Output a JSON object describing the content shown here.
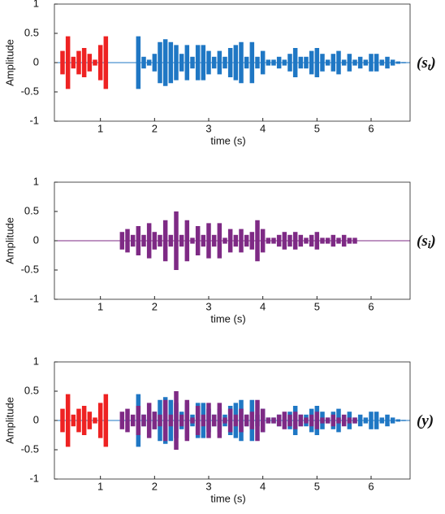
{
  "chart_data": [
    {
      "type": "waveform",
      "ylabel": "Amplitude",
      "xlabel": "time (s)",
      "annotation": {
        "base": "(s",
        "sub": "t",
        "close": ")"
      },
      "xlim": [
        0.15,
        6.72
      ],
      "ylim": [
        -1,
        1
      ],
      "xticks": [
        1,
        2,
        3,
        4,
        5,
        6
      ],
      "yticks": [
        -1,
        -0.5,
        0,
        0.5,
        1
      ],
      "series": [
        {
          "color": "#1f77c4",
          "x": [
            1.7,
            1.8,
            1.9,
            2.0,
            2.1,
            2.2,
            2.3,
            2.4,
            2.5,
            2.6,
            2.7,
            2.8,
            2.9,
            3.0,
            3.1,
            3.2,
            3.3,
            3.4,
            3.5,
            3.6,
            3.7,
            3.8,
            3.9,
            4.0,
            4.1,
            4.2,
            4.3,
            4.4,
            4.5,
            4.6,
            4.7,
            4.8,
            4.9,
            5.0,
            5.1,
            5.2,
            5.3,
            5.4,
            5.5,
            5.6,
            5.7,
            5.8,
            5.9,
            6.0,
            6.1,
            6.2,
            6.3,
            6.4,
            6.5,
            6.6
          ],
          "values": [
            0.45,
            0.1,
            0.05,
            0.15,
            0.35,
            0.4,
            0.35,
            0.3,
            0.15,
            0.3,
            0.1,
            0.3,
            0.3,
            0.2,
            0.1,
            0.2,
            0.1,
            0.25,
            0.3,
            0.35,
            0.1,
            0.35,
            0.1,
            0.2,
            0.05,
            0.05,
            0.1,
            0.05,
            0.15,
            0.25,
            0.1,
            0.1,
            0.2,
            0.25,
            0.15,
            0.05,
            0.15,
            0.2,
            0.05,
            0.15,
            0.05,
            0.1,
            0.05,
            0.15,
            0.15,
            0.05,
            0.1,
            0.05,
            0.02,
            0.01
          ]
        },
        {
          "color": "#ee2222",
          "x": [
            0.3,
            0.4,
            0.5,
            0.6,
            0.7,
            0.8,
            0.9,
            1.0,
            1.1
          ],
          "values": [
            0.2,
            0.45,
            0.1,
            0.2,
            0.25,
            0.15,
            0.05,
            0.3,
            0.45
          ]
        }
      ]
    },
    {
      "type": "waveform",
      "ylabel": "Amplitude",
      "xlabel": "time (s)",
      "annotation": {
        "base": "(s",
        "sub": "i",
        "close": ")"
      },
      "xlim": [
        0.15,
        6.72
      ],
      "ylim": [
        -1,
        1
      ],
      "xticks": [
        1,
        2,
        3,
        4,
        5,
        6
      ],
      "yticks": [
        -1,
        -0.5,
        0,
        0.5,
        1
      ],
      "series": [
        {
          "color": "#7e2a85",
          "x": [
            1.4,
            1.5,
            1.6,
            1.7,
            1.8,
            1.9,
            2.0,
            2.1,
            2.2,
            2.3,
            2.4,
            2.5,
            2.6,
            2.7,
            2.8,
            2.9,
            3.0,
            3.1,
            3.2,
            3.3,
            3.4,
            3.5,
            3.6,
            3.7,
            3.8,
            3.9,
            4.0,
            4.1,
            4.2,
            4.3,
            4.4,
            4.5,
            4.6,
            4.7,
            4.8,
            4.9,
            5.0,
            5.1,
            5.2,
            5.3,
            5.4,
            5.5,
            5.6,
            5.7
          ],
          "values": [
            0.15,
            0.2,
            0.1,
            0.25,
            0.1,
            0.3,
            0.15,
            0.1,
            0.35,
            0.1,
            0.5,
            0.1,
            0.35,
            0.05,
            0.25,
            0.1,
            0.3,
            0.1,
            0.3,
            0.05,
            0.2,
            0.1,
            0.2,
            0.1,
            0.15,
            0.35,
            0.2,
            0.05,
            0.05,
            0.1,
            0.15,
            0.1,
            0.15,
            0.1,
            0.05,
            0.1,
            0.15,
            0.05,
            0.05,
            0.1,
            0.05,
            0.1,
            0.05,
            0.05
          ]
        }
      ]
    },
    {
      "type": "waveform",
      "ylabel": "Amplitude",
      "xlabel": "time (s)",
      "annotation": {
        "base": "(y",
        "close": ")"
      },
      "xlim": [
        0.15,
        6.72
      ],
      "ylim": [
        -1,
        1
      ],
      "xticks": [
        1,
        2,
        3,
        4,
        5,
        6
      ],
      "yticks": [
        -1,
        -0.5,
        0,
        0.5,
        1
      ],
      "series": [
        {
          "color": "#1f77c4",
          "x": [
            1.7,
            1.8,
            1.9,
            2.0,
            2.1,
            2.2,
            2.3,
            2.4,
            2.5,
            2.6,
            2.7,
            2.8,
            2.9,
            3.0,
            3.1,
            3.2,
            3.3,
            3.4,
            3.5,
            3.6,
            3.7,
            3.8,
            3.9,
            4.0,
            4.1,
            4.2,
            4.3,
            4.4,
            4.5,
            4.6,
            4.7,
            4.8,
            4.9,
            5.0,
            5.1,
            5.2,
            5.3,
            5.4,
            5.5,
            5.6,
            5.7,
            5.8,
            5.9,
            6.0,
            6.1,
            6.2,
            6.3,
            6.4,
            6.5,
            6.6
          ],
          "values": [
            0.45,
            0.1,
            0.05,
            0.15,
            0.35,
            0.4,
            0.35,
            0.3,
            0.15,
            0.3,
            0.1,
            0.3,
            0.3,
            0.2,
            0.1,
            0.2,
            0.1,
            0.25,
            0.3,
            0.35,
            0.1,
            0.35,
            0.1,
            0.2,
            0.05,
            0.05,
            0.1,
            0.05,
            0.15,
            0.25,
            0.1,
            0.1,
            0.2,
            0.25,
            0.15,
            0.05,
            0.15,
            0.2,
            0.05,
            0.15,
            0.05,
            0.1,
            0.05,
            0.15,
            0.15,
            0.05,
            0.1,
            0.05,
            0.02,
            0.01
          ]
        },
        {
          "color": "#7e2a85",
          "x": [
            1.4,
            1.5,
            1.6,
            1.7,
            1.8,
            1.9,
            2.0,
            2.1,
            2.2,
            2.3,
            2.4,
            2.5,
            2.6,
            2.7,
            2.8,
            2.9,
            3.0,
            3.1,
            3.2,
            3.3,
            3.4,
            3.5,
            3.6,
            3.7,
            3.8,
            3.9,
            4.0,
            4.1,
            4.2,
            4.3,
            4.4,
            4.5,
            4.6,
            4.7,
            4.8,
            4.9,
            5.0,
            5.1,
            5.2,
            5.3,
            5.4,
            5.5,
            5.6,
            5.7
          ],
          "values": [
            0.15,
            0.2,
            0.1,
            0.25,
            0.1,
            0.3,
            0.15,
            0.1,
            0.35,
            0.1,
            0.5,
            0.1,
            0.35,
            0.05,
            0.25,
            0.1,
            0.3,
            0.1,
            0.3,
            0.05,
            0.2,
            0.1,
            0.2,
            0.1,
            0.15,
            0.35,
            0.2,
            0.05,
            0.05,
            0.1,
            0.15,
            0.1,
            0.15,
            0.1,
            0.05,
            0.1,
            0.15,
            0.05,
            0.05,
            0.1,
            0.05,
            0.1,
            0.05,
            0.05
          ]
        },
        {
          "color": "#ee2222",
          "x": [
            0.3,
            0.4,
            0.5,
            0.6,
            0.7,
            0.8,
            0.9,
            1.0,
            1.1
          ],
          "values": [
            0.2,
            0.45,
            0.1,
            0.2,
            0.25,
            0.15,
            0.05,
            0.3,
            0.45
          ]
        }
      ]
    }
  ]
}
